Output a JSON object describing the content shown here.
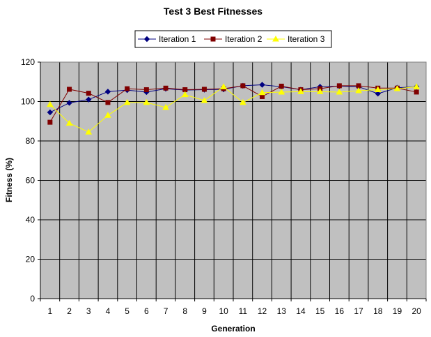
{
  "chart_data": {
    "type": "line",
    "title": "Test 3 Best Fitnesses",
    "xlabel": "Generation",
    "ylabel": "Fitness (%)",
    "categories": [
      "1",
      "2",
      "3",
      "4",
      "5",
      "6",
      "7",
      "8",
      "9",
      "10",
      "11",
      "12",
      "13",
      "14",
      "15",
      "16",
      "17",
      "18",
      "19",
      "20"
    ],
    "ylim": [
      0,
      120
    ],
    "yticks": [
      0,
      20,
      40,
      60,
      80,
      100,
      120
    ],
    "grid": true,
    "legend_position": "top",
    "plot_background": "#c0c0c0",
    "series": [
      {
        "name": "Iteration 1",
        "color": "#000080",
        "marker": "diamond",
        "values": [
          94.5,
          99.3,
          101.0,
          105.0,
          105.8,
          104.8,
          106.5,
          105.8,
          106.0,
          106.2,
          108.0,
          108.5,
          107.5,
          106.0,
          107.5,
          107.8,
          107.5,
          104.0,
          107.0,
          107.5
        ]
      },
      {
        "name": "Iteration 2",
        "color": "#800000",
        "marker": "square",
        "values": [
          89.5,
          106.2,
          104.2,
          99.5,
          106.5,
          106.0,
          106.8,
          106.0,
          106.2,
          106.5,
          108.0,
          102.5,
          107.8,
          106.0,
          106.5,
          108.0,
          108.0,
          106.8,
          106.8,
          104.8
        ]
      },
      {
        "name": "Iteration 3",
        "color": "#ffff00",
        "marker": "triangle",
        "values": [
          98.5,
          89.0,
          84.5,
          93.0,
          99.5,
          99.5,
          97.0,
          103.5,
          100.5,
          107.5,
          99.5,
          104.5,
          104.8,
          105.0,
          105.0,
          104.8,
          105.5,
          106.0,
          106.5,
          107.5
        ]
      }
    ]
  }
}
